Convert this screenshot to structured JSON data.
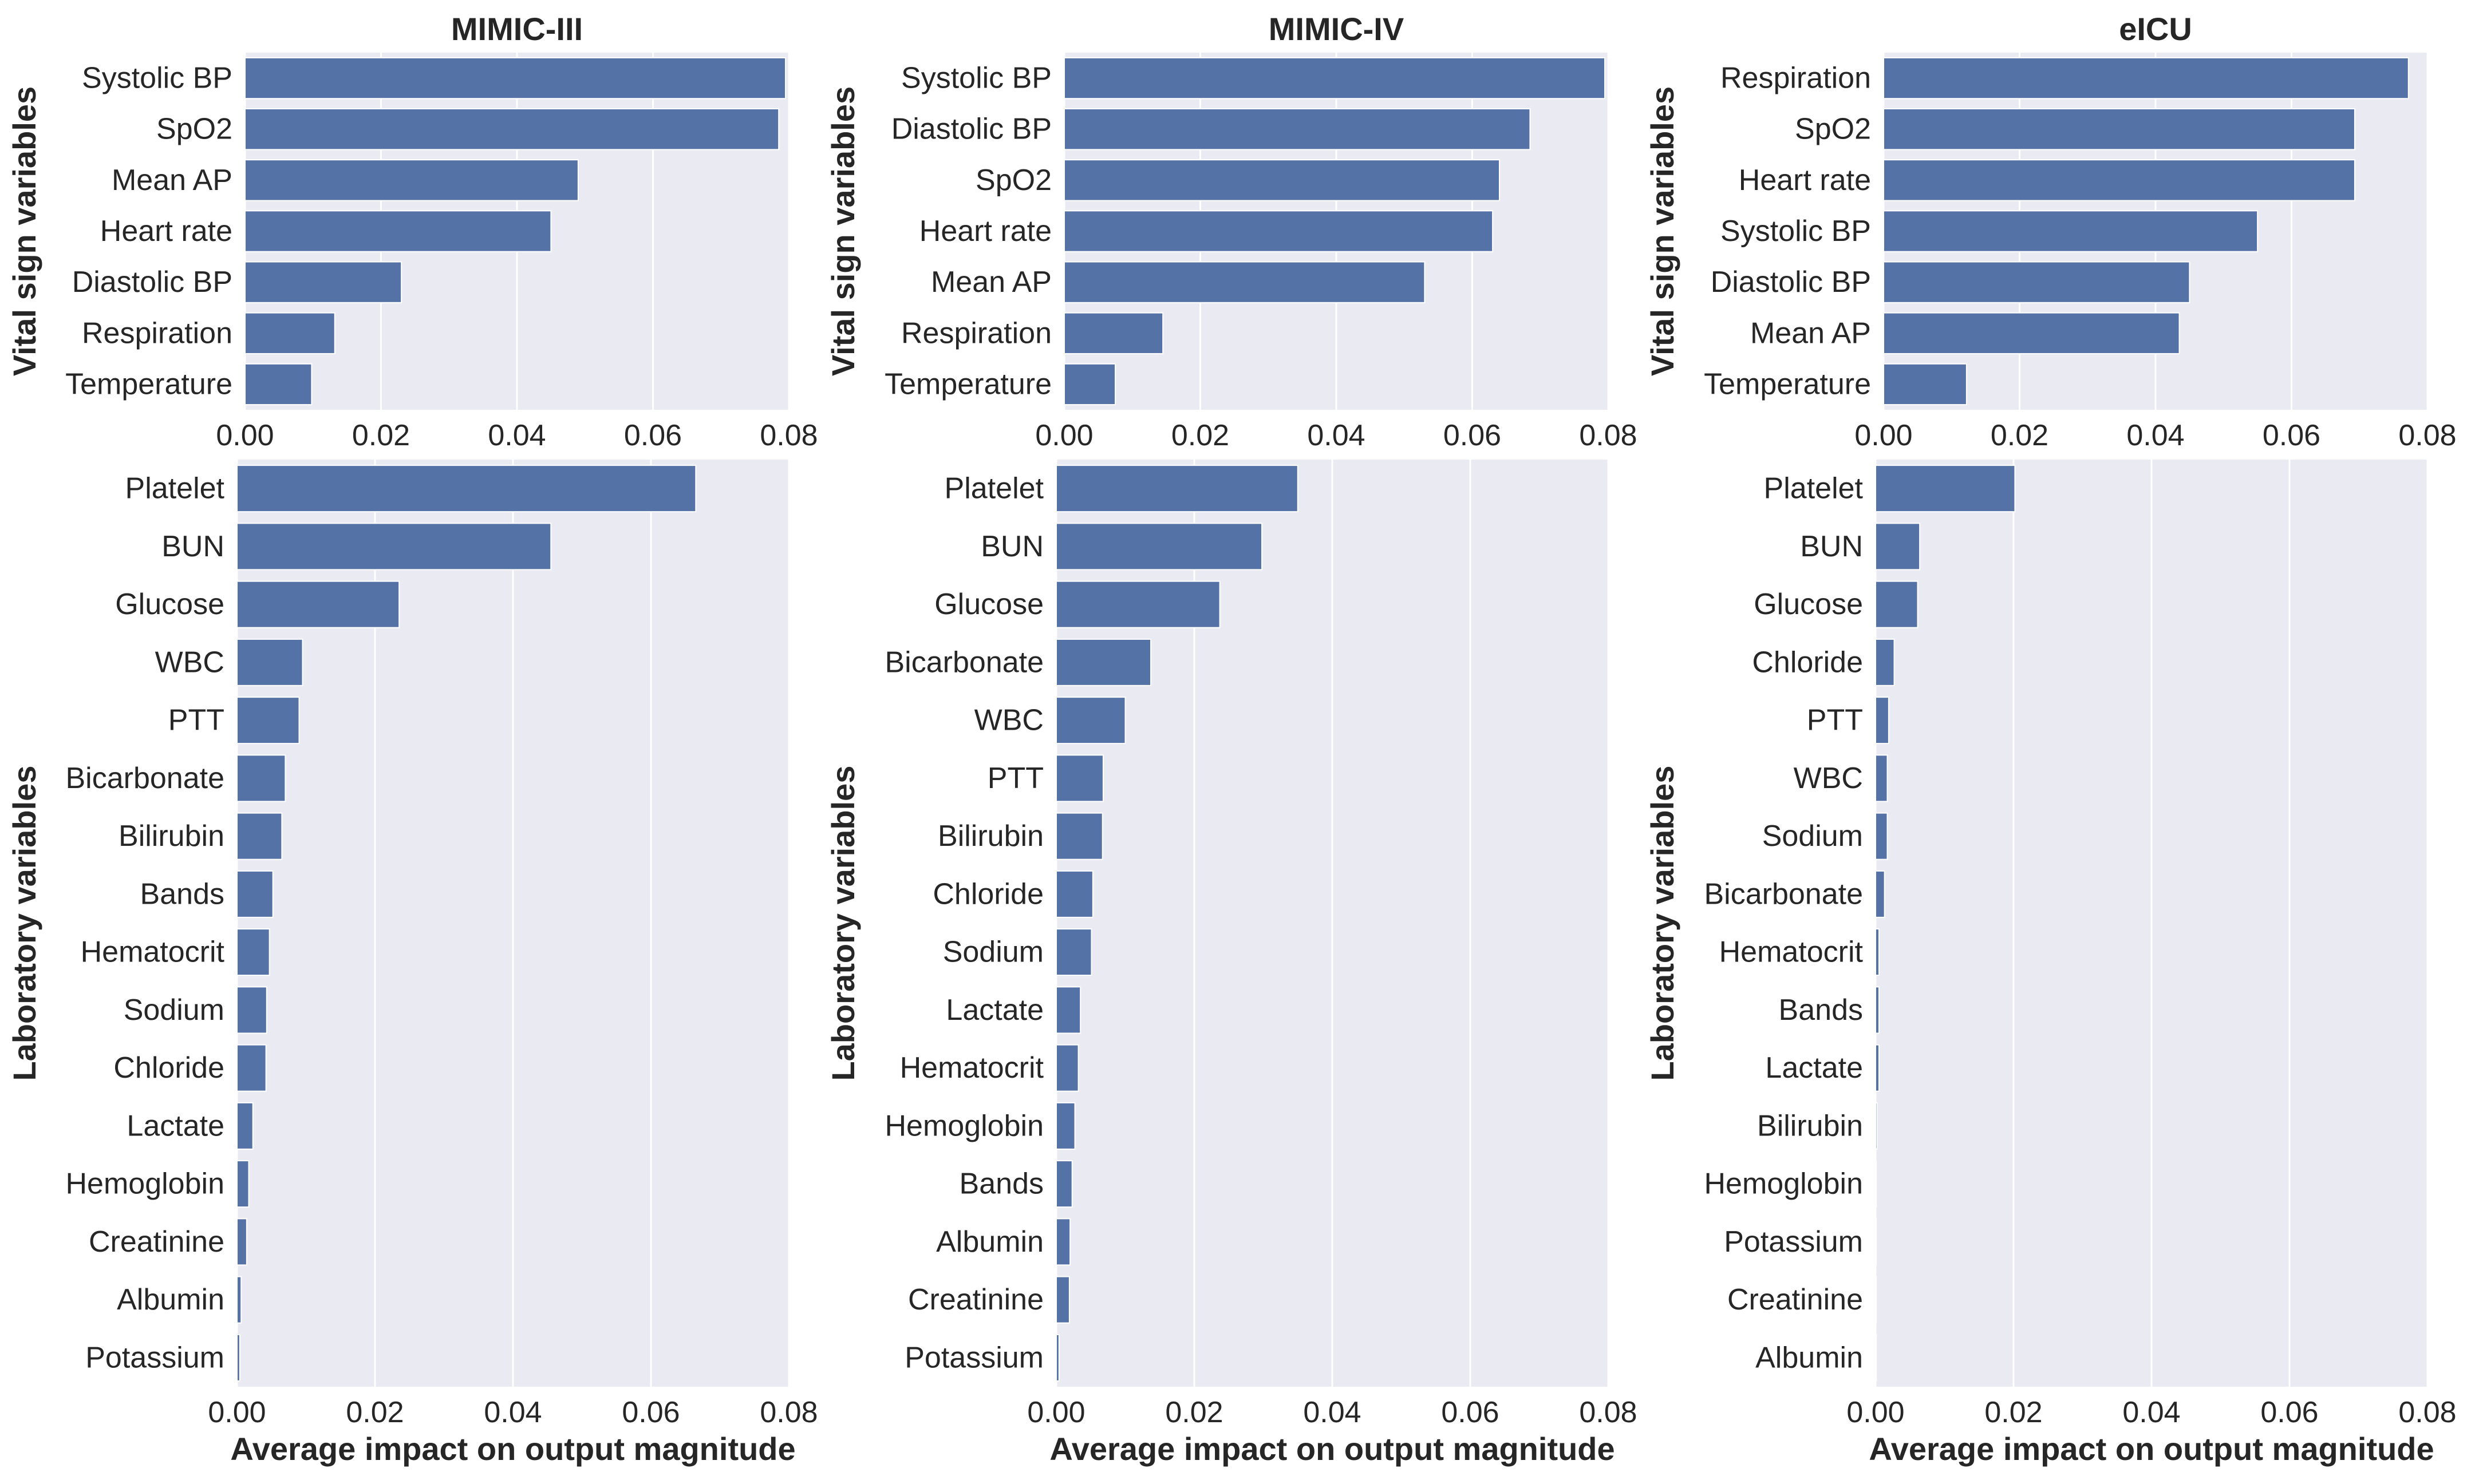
{
  "colors": {
    "bar": "#5572a7",
    "plot_bg": "#eaeaf2",
    "grid": "#ffffff",
    "text": "#262626"
  },
  "chart_data": [
    {
      "type": "bar",
      "orientation": "horizontal",
      "title": "MIMIC-III",
      "ylabel": "Vital sign variables",
      "xlabel": "",
      "xlim": [
        0,
        0.08
      ],
      "xticks": [
        "0.00",
        "0.02",
        "0.04",
        "0.06",
        "0.08"
      ],
      "categories": [
        "Systolic BP",
        "SpO2",
        "Mean AP",
        "Heart rate",
        "Diastolic BP",
        "Respiration",
        "Temperature"
      ],
      "values": [
        0.0795,
        0.0785,
        0.049,
        0.045,
        0.023,
        0.0132,
        0.0098
      ]
    },
    {
      "type": "bar",
      "orientation": "horizontal",
      "title": "MIMIC-IV",
      "ylabel": "Vital sign variables",
      "xlabel": "",
      "xlim": [
        0,
        0.08
      ],
      "xticks": [
        "0.00",
        "0.02",
        "0.04",
        "0.06",
        "0.08"
      ],
      "categories": [
        "Systolic BP",
        "Diastolic BP",
        "SpO2",
        "Heart rate",
        "Mean AP",
        "Respiration",
        "Temperature"
      ],
      "values": [
        0.0795,
        0.0685,
        0.064,
        0.063,
        0.053,
        0.0145,
        0.0075
      ]
    },
    {
      "type": "bar",
      "orientation": "horizontal",
      "title": "eICU",
      "ylabel": "Vital sign variables",
      "xlabel": "",
      "xlim": [
        0,
        0.08
      ],
      "xticks": [
        "0.00",
        "0.02",
        "0.04",
        "0.06",
        "0.08"
      ],
      "categories": [
        "Respiration",
        "SpO2",
        "Heart rate",
        "Systolic BP",
        "Diastolic BP",
        "Mean AP",
        "Temperature"
      ],
      "values": [
        0.0772,
        0.0693,
        0.0693,
        0.055,
        0.045,
        0.0435,
        0.0122
      ]
    },
    {
      "type": "bar",
      "orientation": "horizontal",
      "title": "",
      "ylabel": "Laboratory variables",
      "xlabel": "Average impact on output magnitude",
      "xlim": [
        0,
        0.08
      ],
      "xticks": [
        "0.00",
        "0.02",
        "0.04",
        "0.06",
        "0.08"
      ],
      "categories": [
        "Platelet",
        "BUN",
        "Glucose",
        "WBC",
        "PTT",
        "Bicarbonate",
        "Bilirubin",
        "Bands",
        "Hematocrit",
        "Sodium",
        "Chloride",
        "Lactate",
        "Hemoglobin",
        "Creatinine",
        "Albumin",
        "Potassium"
      ],
      "values": [
        0.0665,
        0.0455,
        0.0235,
        0.0095,
        0.009,
        0.007,
        0.0065,
        0.0052,
        0.0047,
        0.0043,
        0.0042,
        0.0023,
        0.0017,
        0.0014,
        0.0006,
        0.0004
      ]
    },
    {
      "type": "bar",
      "orientation": "horizontal",
      "title": "",
      "ylabel": "Laboratory variables",
      "xlabel": "Average impact on output magnitude",
      "xlim": [
        0,
        0.08
      ],
      "xticks": [
        "0.00",
        "0.02",
        "0.04",
        "0.06",
        "0.08"
      ],
      "categories": [
        "Platelet",
        "BUN",
        "Glucose",
        "Bicarbonate",
        "WBC",
        "PTT",
        "Bilirubin",
        "Chloride",
        "Sodium",
        "Lactate",
        "Hematocrit",
        "Hemoglobin",
        "Bands",
        "Albumin",
        "Creatinine",
        "Potassium"
      ],
      "values": [
        0.035,
        0.0298,
        0.0237,
        0.0137,
        0.01,
        0.0068,
        0.0067,
        0.0053,
        0.0051,
        0.0035,
        0.0032,
        0.0027,
        0.0023,
        0.002,
        0.0019,
        0.0004
      ]
    },
    {
      "type": "bar",
      "orientation": "horizontal",
      "title": "",
      "ylabel": "Laboratory variables",
      "xlabel": "Average impact on output magnitude",
      "xlim": [
        0,
        0.08
      ],
      "xticks": [
        "0.00",
        "0.02",
        "0.04",
        "0.06",
        "0.08"
      ],
      "categories": [
        "Platelet",
        "BUN",
        "Glucose",
        "Chloride",
        "PTT",
        "WBC",
        "Sodium",
        "Bicarbonate",
        "Hematocrit",
        "Bands",
        "Lactate",
        "Bilirubin",
        "Hemoglobin",
        "Potassium",
        "Creatinine",
        "Albumin"
      ],
      "values": [
        0.0202,
        0.0064,
        0.0061,
        0.0027,
        0.0019,
        0.0017,
        0.0017,
        0.0013,
        0.0005,
        0.0005,
        0.0005,
        0.0002,
        0.0001,
        0.0001,
        0.0001,
        0.0001
      ]
    }
  ]
}
